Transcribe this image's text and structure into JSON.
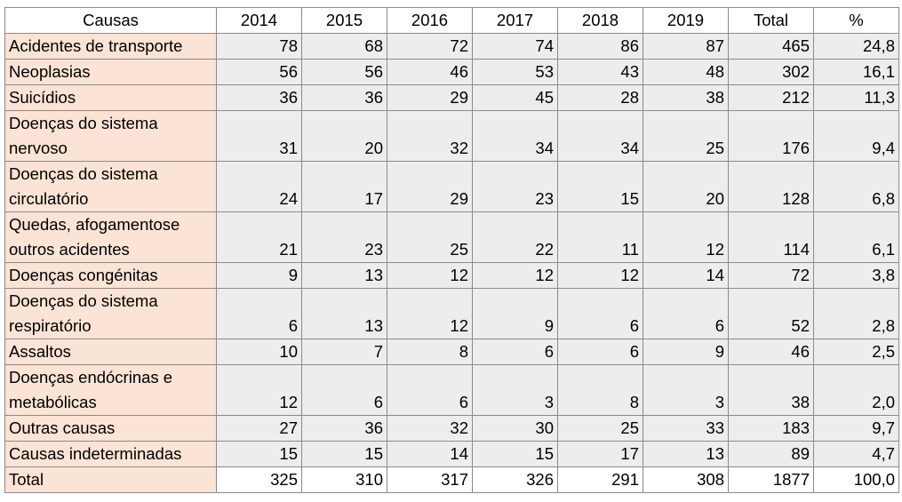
{
  "table": {
    "header": [
      "Causas",
      "2014",
      "2015",
      "2016",
      "2017",
      "2018",
      "2019",
      "Total",
      "%"
    ],
    "rows": [
      [
        "Acidentes de transporte",
        "78",
        "68",
        "72",
        "74",
        "86",
        "87",
        "465",
        "24,8"
      ],
      [
        "Neoplasias",
        "56",
        "56",
        "46",
        "53",
        "43",
        "48",
        "302",
        "16,1"
      ],
      [
        "Suicídios",
        "36",
        "36",
        "29",
        "45",
        "28",
        "38",
        "212",
        "11,3"
      ],
      [
        "Doenças do sistema\nnervoso",
        "31",
        "20",
        "32",
        "34",
        "34",
        "25",
        "176",
        "9,4"
      ],
      [
        "Doenças do sistema\ncirculatório",
        "24",
        "17",
        "29",
        "23",
        "15",
        "20",
        "128",
        "6,8"
      ],
      [
        "Quedas, afogamentose\noutros acidentes",
        "21",
        "23",
        "25",
        "22",
        "11",
        "12",
        "114",
        "6,1"
      ],
      [
        "Doenças congénitas",
        "9",
        "13",
        "12",
        "12",
        "12",
        "14",
        "72",
        "3,8"
      ],
      [
        "Doenças do sistema\nrespiratório",
        "6",
        "13",
        "12",
        "9",
        "6",
        "6",
        "52",
        "2,8"
      ],
      [
        "Assaltos",
        "10",
        "7",
        "8",
        "6",
        "6",
        "9",
        "46",
        "2,5"
      ],
      [
        "Doenças endócrinas e\nmetabólicas",
        "12",
        "6",
        "6",
        "3",
        "8",
        "3",
        "38",
        "2,0"
      ],
      [
        "Outras causas",
        "27",
        "36",
        "32",
        "30",
        "25",
        "33",
        "183",
        "9,7"
      ],
      [
        "Causas indeterminadas",
        "15",
        "15",
        "14",
        "15",
        "17",
        "13",
        "89",
        "4,7"
      ],
      [
        "Total",
        "325",
        "310",
        "317",
        "326",
        "291",
        "308",
        "1877",
        "100,0"
      ]
    ]
  }
}
